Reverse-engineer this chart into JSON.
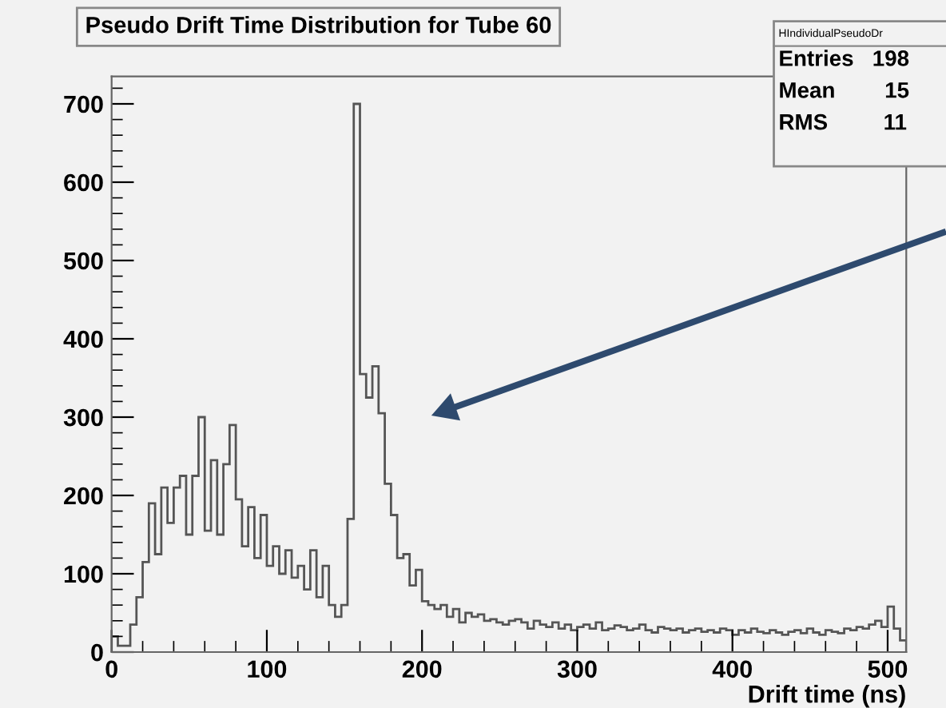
{
  "chart_data": {
    "type": "histogram",
    "title": "Pseudo Drift Time Distribution for Tube 60",
    "xlabel": "Drift time (ns)",
    "annotations": [
      "HIndividualPseudoDr",
      "Entries   198",
      "Mean        15",
      "RMS         11"
    ],
    "bins": [
      0,
      4,
      8,
      12,
      16,
      20,
      24,
      28,
      32,
      36,
      40,
      44,
      48,
      52,
      56,
      60,
      64,
      68,
      72,
      76,
      80,
      84,
      88,
      92,
      96,
      100,
      104,
      108,
      112,
      116,
      120,
      124,
      128,
      132,
      136,
      140,
      144,
      148,
      152,
      156,
      160,
      164,
      168,
      172,
      176,
      180,
      184,
      188,
      192,
      196,
      200,
      204,
      208,
      212,
      216,
      220,
      224,
      228,
      232,
      236,
      240,
      244,
      248,
      252,
      256,
      260,
      264,
      268,
      272,
      276,
      280,
      284,
      288,
      292,
      296,
      300,
      304,
      308,
      312,
      316,
      320,
      324,
      328,
      332,
      336,
      340,
      344,
      348,
      352,
      356,
      360,
      364,
      368,
      372,
      376,
      380,
      384,
      388,
      392,
      396,
      400,
      404,
      408,
      412,
      416,
      420,
      424,
      428,
      432,
      436,
      440,
      444,
      448,
      452,
      456,
      460,
      464,
      468,
      472,
      476,
      480,
      484,
      488,
      492,
      496,
      500,
      504,
      508,
      512
    ],
    "values": [
      20,
      8,
      8,
      35,
      70,
      115,
      190,
      125,
      210,
      165,
      210,
      225,
      150,
      225,
      300,
      155,
      245,
      150,
      240,
      290,
      195,
      135,
      185,
      120,
      175,
      110,
      135,
      100,
      130,
      95,
      110,
      80,
      130,
      70,
      110,
      60,
      45,
      60,
      170,
      700,
      355,
      325,
      365,
      305,
      215,
      175,
      120,
      125,
      85,
      105,
      65,
      60,
      55,
      60,
      45,
      55,
      38,
      50,
      45,
      48,
      40,
      42,
      38,
      35,
      40,
      42,
      38,
      30,
      40,
      35,
      32,
      38,
      30,
      35,
      28,
      32,
      35,
      30,
      38,
      28,
      30,
      34,
      32,
      28,
      30,
      35,
      28,
      25,
      32,
      30,
      28,
      30,
      25,
      28,
      30,
      26,
      28,
      25,
      30,
      28,
      22,
      28,
      25,
      30,
      26,
      24,
      28,
      25,
      22,
      26,
      28,
      24,
      30,
      25,
      22,
      28,
      26,
      24,
      30,
      28,
      32,
      30,
      35,
      40,
      32,
      58,
      30,
      15
    ],
    "color": "#555555",
    "xlim": [
      0,
      512
    ],
    "ylim": [
      0,
      735
    ],
    "xticks": [
      0,
      100,
      200,
      300,
      400,
      500
    ],
    "yticks": [
      0,
      100,
      200,
      300,
      400,
      500,
      600,
      700
    ],
    "grid": false
  }
}
